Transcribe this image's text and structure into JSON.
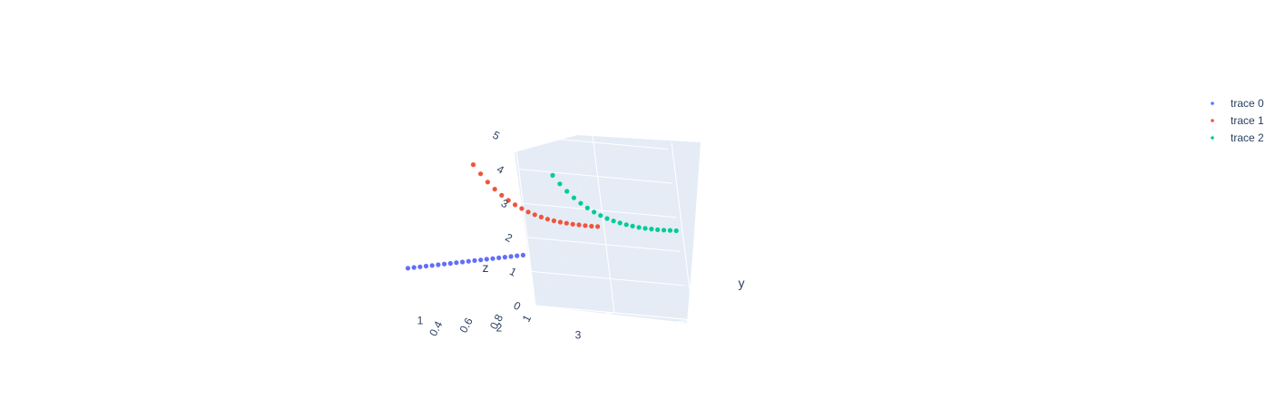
{
  "chart_data": {
    "type": "scatter",
    "title": "",
    "axes": {
      "x": {
        "label": "",
        "tick_labels": [
          "1",
          "0.8",
          "0.6",
          "0.4"
        ]
      },
      "y": {
        "label": "y",
        "tick_labels": [
          "1",
          "2",
          "3"
        ]
      },
      "z": {
        "label": "z",
        "tick_labels": [
          "0",
          "1",
          "2",
          "3",
          "4",
          "5"
        ]
      }
    },
    "background_color": "#e5ecf6",
    "grid": true,
    "legend": {
      "placement": "top-right"
    },
    "series": [
      {
        "name": "trace 0",
        "color": "#636efa",
        "points": [
          [
            0.96,
            1,
            1.5
          ],
          [
            0.92,
            1,
            1.5
          ],
          [
            0.88,
            1,
            1.5
          ],
          [
            0.84,
            1,
            1.5
          ],
          [
            0.8,
            1,
            1.5
          ],
          [
            0.76,
            1,
            1.5
          ],
          [
            0.72,
            1,
            1.5
          ],
          [
            0.68,
            1,
            1.5
          ],
          [
            0.64,
            1,
            1.5
          ],
          [
            0.6,
            1,
            1.5
          ],
          [
            0.56,
            1,
            1.5
          ],
          [
            0.52,
            1,
            1.5
          ],
          [
            0.48,
            1,
            1.5
          ],
          [
            0.44,
            1,
            1.5
          ],
          [
            0.4,
            1,
            1.5
          ],
          [
            0.36,
            1,
            1.5
          ],
          [
            0.32,
            1,
            1.5
          ],
          [
            0.28,
            1,
            1.5
          ],
          [
            0.24,
            1,
            1.5
          ],
          [
            0.2,
            1,
            1.5
          ]
        ]
      },
      {
        "name": "trace 1",
        "color": "#ef553b",
        "points": [
          [
            0.96,
            2,
            2.55
          ],
          [
            0.92,
            2,
            2.58
          ],
          [
            0.88,
            2,
            2.62
          ],
          [
            0.84,
            2,
            2.66
          ],
          [
            0.8,
            2,
            2.7
          ],
          [
            0.76,
            2,
            2.75
          ],
          [
            0.72,
            2,
            2.8
          ],
          [
            0.68,
            2,
            2.86
          ],
          [
            0.64,
            2,
            2.93
          ],
          [
            0.6,
            2,
            3.01
          ],
          [
            0.56,
            2,
            3.1
          ],
          [
            0.52,
            2,
            3.2
          ],
          [
            0.48,
            2,
            3.32
          ],
          [
            0.44,
            2,
            3.45
          ],
          [
            0.4,
            2,
            3.6
          ],
          [
            0.36,
            2,
            3.77
          ],
          [
            0.32,
            2,
            3.97
          ],
          [
            0.28,
            2,
            4.2
          ],
          [
            0.24,
            2,
            4.46
          ],
          [
            0.2,
            2,
            4.75
          ]
        ]
      },
      {
        "name": "trace 2",
        "color": "#00cc96",
        "points": [
          [
            0.96,
            3,
            2.64
          ],
          [
            0.92,
            3,
            2.67
          ],
          [
            0.88,
            3,
            2.7
          ],
          [
            0.84,
            3,
            2.73
          ],
          [
            0.8,
            3,
            2.77
          ],
          [
            0.76,
            3,
            2.81
          ],
          [
            0.72,
            3,
            2.86
          ],
          [
            0.68,
            3,
            2.92
          ],
          [
            0.64,
            3,
            2.98
          ],
          [
            0.6,
            3,
            3.05
          ],
          [
            0.56,
            3,
            3.13
          ],
          [
            0.52,
            3,
            3.22
          ],
          [
            0.48,
            3,
            3.33
          ],
          [
            0.44,
            3,
            3.45
          ],
          [
            0.4,
            3,
            3.59
          ],
          [
            0.36,
            3,
            3.75
          ],
          [
            0.32,
            3,
            3.93
          ],
          [
            0.28,
            3,
            4.14
          ],
          [
            0.24,
            3,
            4.38
          ],
          [
            0.2,
            3,
            4.65
          ]
        ]
      }
    ]
  }
}
